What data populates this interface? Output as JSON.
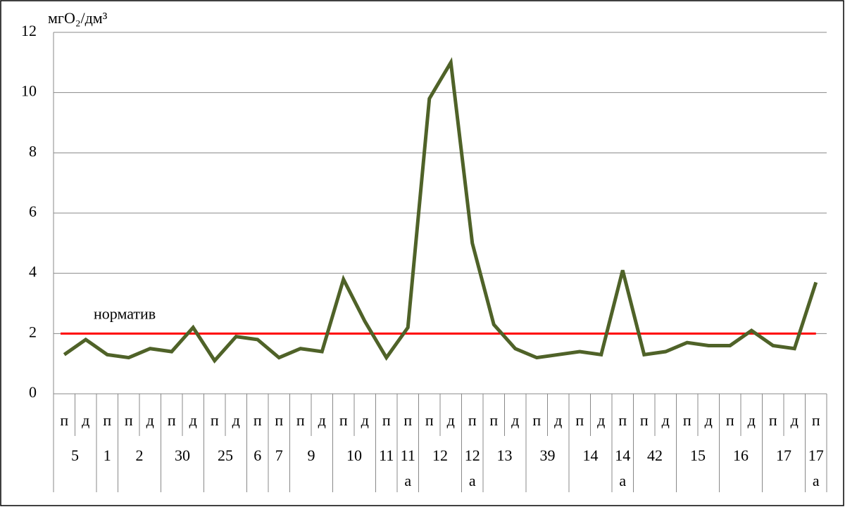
{
  "chart_data": {
    "type": "line",
    "y_label": "мгO₂/дм³",
    "groups": [
      {
        "label": "5",
        "sub": [
          "п",
          "д"
        ]
      },
      {
        "label": "1",
        "sub": [
          "п"
        ]
      },
      {
        "label": "2",
        "sub": [
          "п",
          "д"
        ]
      },
      {
        "label": "30",
        "sub": [
          "п",
          "д"
        ]
      },
      {
        "label": "25",
        "sub": [
          "п",
          "д"
        ]
      },
      {
        "label": "6",
        "sub": [
          "п"
        ]
      },
      {
        "label": "7",
        "sub": [
          "п"
        ]
      },
      {
        "label": "9",
        "sub": [
          "п",
          "д"
        ]
      },
      {
        "label": "10",
        "sub": [
          "п",
          "д"
        ]
      },
      {
        "label": "11",
        "sub": [
          "п"
        ]
      },
      {
        "label": "11а",
        "sub": [
          "п"
        ]
      },
      {
        "label": "12",
        "sub": [
          "п",
          "д"
        ]
      },
      {
        "label": "12а",
        "sub": [
          "п"
        ]
      },
      {
        "label": "13",
        "sub": [
          "п",
          "д"
        ]
      },
      {
        "label": "39",
        "sub": [
          "п",
          "д"
        ]
      },
      {
        "label": "14",
        "sub": [
          "п",
          "д"
        ]
      },
      {
        "label": "14а",
        "sub": [
          "п"
        ]
      },
      {
        "label": "42",
        "sub": [
          "п",
          "д"
        ]
      },
      {
        "label": "15",
        "sub": [
          "п",
          "д"
        ]
      },
      {
        "label": "16",
        "sub": [
          "п",
          "д"
        ]
      },
      {
        "label": "17",
        "sub": [
          "п",
          "д"
        ]
      },
      {
        "label": "17а",
        "sub": [
          "п"
        ]
      }
    ],
    "series": [
      {
        "color": "#4f6228",
        "values": [
          1.3,
          1.8,
          1.3,
          1.2,
          1.5,
          1.4,
          2.2,
          1.1,
          1.9,
          1.8,
          1.2,
          1.5,
          1.4,
          3.8,
          2.4,
          1.2,
          2.2,
          9.8,
          11,
          5.0,
          2.3,
          1.5,
          1.2,
          1.3,
          1.4,
          1.3,
          4.1,
          1.3,
          1.4,
          1.7,
          1.6,
          1.6,
          2.1,
          1.6,
          1.5,
          3.7
        ]
      }
    ],
    "norm": {
      "label": "норматив",
      "value": 2,
      "color": "#ff0000"
    },
    "ylim": [
      0,
      12
    ],
    "yticks": [
      0,
      2,
      4,
      6,
      8,
      10,
      12
    ],
    "grid": true
  }
}
